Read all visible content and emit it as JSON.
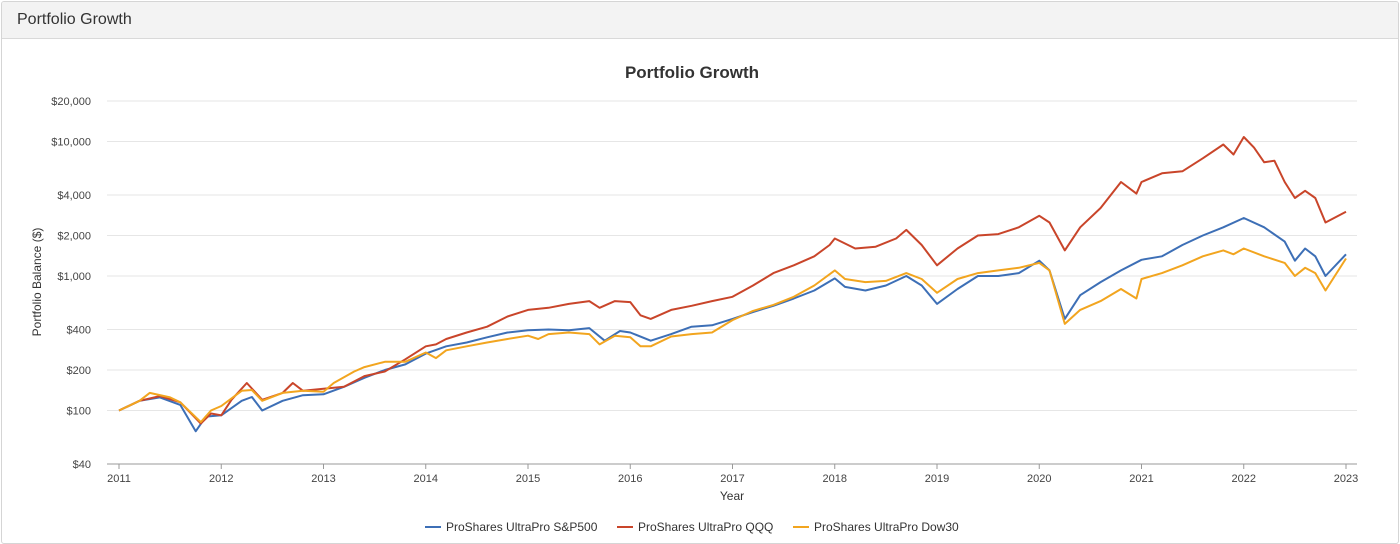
{
  "panel": {
    "title": "Portfolio Growth"
  },
  "colors": {
    "sp500": "#3d6fb6",
    "qqq": "#c9452a",
    "dow30": "#f2a51f",
    "grid": "#e6e6e6",
    "text": "#333333"
  },
  "chart_data": {
    "type": "line",
    "title": "Portfolio Growth",
    "xlabel": "Year",
    "ylabel": "Portfolio Balance ($)",
    "yscale": "log",
    "ylim": [
      40,
      20000
    ],
    "xlim": [
      2011,
      2023
    ],
    "yticks": [
      {
        "value": 20000,
        "label": "$20,000"
      },
      {
        "value": 10000,
        "label": "$10,000"
      },
      {
        "value": 4000,
        "label": "$4,000"
      },
      {
        "value": 2000,
        "label": "$2,000"
      },
      {
        "value": 1000,
        "label": "$1,000"
      },
      {
        "value": 400,
        "label": "$400"
      },
      {
        "value": 200,
        "label": "$200"
      },
      {
        "value": 100,
        "label": "$100"
      },
      {
        "value": 40,
        "label": "$40"
      }
    ],
    "xticks": [
      {
        "value": 2011,
        "label": "2011"
      },
      {
        "value": 2012,
        "label": "2012"
      },
      {
        "value": 2013,
        "label": "2013"
      },
      {
        "value": 2014,
        "label": "2014"
      },
      {
        "value": 2015,
        "label": "2015"
      },
      {
        "value": 2016,
        "label": "2016"
      },
      {
        "value": 2017,
        "label": "2017"
      },
      {
        "value": 2018,
        "label": "2018"
      },
      {
        "value": 2019,
        "label": "2019"
      },
      {
        "value": 2020,
        "label": "2020"
      },
      {
        "value": 2021,
        "label": "2021"
      },
      {
        "value": 2022,
        "label": "2022"
      },
      {
        "value": 2023,
        "label": "2023"
      }
    ],
    "grid": true,
    "legend": "bottom-center",
    "series": [
      {
        "name": "ProShares UltraPro S&P500",
        "color": "#3d6fb6",
        "points": [
          [
            2011.0,
            100
          ],
          [
            2011.2,
            118
          ],
          [
            2011.4,
            125
          ],
          [
            2011.6,
            110
          ],
          [
            2011.75,
            70
          ],
          [
            2011.85,
            90
          ],
          [
            2012.0,
            92
          ],
          [
            2012.2,
            118
          ],
          [
            2012.3,
            126
          ],
          [
            2012.4,
            100
          ],
          [
            2012.6,
            118
          ],
          [
            2012.8,
            130
          ],
          [
            2013.0,
            132
          ],
          [
            2013.2,
            150
          ],
          [
            2013.4,
            175
          ],
          [
            2013.6,
            200
          ],
          [
            2013.8,
            220
          ],
          [
            2014.0,
            265
          ],
          [
            2014.2,
            300
          ],
          [
            2014.4,
            320
          ],
          [
            2014.6,
            350
          ],
          [
            2014.8,
            380
          ],
          [
            2015.0,
            395
          ],
          [
            2015.2,
            400
          ],
          [
            2015.4,
            395
          ],
          [
            2015.6,
            410
          ],
          [
            2015.75,
            330
          ],
          [
            2015.9,
            390
          ],
          [
            2016.0,
            380
          ],
          [
            2016.2,
            330
          ],
          [
            2016.4,
            370
          ],
          [
            2016.6,
            420
          ],
          [
            2016.8,
            430
          ],
          [
            2017.0,
            480
          ],
          [
            2017.2,
            540
          ],
          [
            2017.4,
            600
          ],
          [
            2017.6,
            680
          ],
          [
            2017.8,
            780
          ],
          [
            2018.0,
            960
          ],
          [
            2018.1,
            830
          ],
          [
            2018.3,
            780
          ],
          [
            2018.5,
            850
          ],
          [
            2018.7,
            1000
          ],
          [
            2018.85,
            850
          ],
          [
            2019.0,
            620
          ],
          [
            2019.2,
            800
          ],
          [
            2019.4,
            1000
          ],
          [
            2019.6,
            1000
          ],
          [
            2019.8,
            1050
          ],
          [
            2020.0,
            1300
          ],
          [
            2020.1,
            1100
          ],
          [
            2020.25,
            480
          ],
          [
            2020.4,
            720
          ],
          [
            2020.6,
            900
          ],
          [
            2020.8,
            1100
          ],
          [
            2021.0,
            1320
          ],
          [
            2021.2,
            1400
          ],
          [
            2021.4,
            1700
          ],
          [
            2021.6,
            2000
          ],
          [
            2021.8,
            2300
          ],
          [
            2022.0,
            2700
          ],
          [
            2022.2,
            2300
          ],
          [
            2022.4,
            1800
          ],
          [
            2022.5,
            1300
          ],
          [
            2022.6,
            1600
          ],
          [
            2022.7,
            1400
          ],
          [
            2022.8,
            1000
          ],
          [
            2023.0,
            1450
          ]
        ]
      },
      {
        "name": "ProShares UltraPro QQQ",
        "color": "#c9452a",
        "points": [
          [
            2011.0,
            100
          ],
          [
            2011.2,
            118
          ],
          [
            2011.4,
            128
          ],
          [
            2011.6,
            115
          ],
          [
            2011.8,
            80
          ],
          [
            2011.9,
            95
          ],
          [
            2012.0,
            92
          ],
          [
            2012.1,
            120
          ],
          [
            2012.25,
            160
          ],
          [
            2012.4,
            120
          ],
          [
            2012.6,
            135
          ],
          [
            2012.7,
            160
          ],
          [
            2012.8,
            140
          ],
          [
            2013.0,
            145
          ],
          [
            2013.2,
            150
          ],
          [
            2013.4,
            180
          ],
          [
            2013.6,
            195
          ],
          [
            2013.8,
            240
          ],
          [
            2014.0,
            300
          ],
          [
            2014.1,
            310
          ],
          [
            2014.2,
            340
          ],
          [
            2014.4,
            380
          ],
          [
            2014.6,
            420
          ],
          [
            2014.8,
            500
          ],
          [
            2015.0,
            560
          ],
          [
            2015.2,
            580
          ],
          [
            2015.4,
            620
          ],
          [
            2015.6,
            650
          ],
          [
            2015.7,
            580
          ],
          [
            2015.85,
            650
          ],
          [
            2016.0,
            640
          ],
          [
            2016.1,
            510
          ],
          [
            2016.2,
            480
          ],
          [
            2016.4,
            560
          ],
          [
            2016.6,
            600
          ],
          [
            2016.8,
            650
          ],
          [
            2017.0,
            700
          ],
          [
            2017.2,
            850
          ],
          [
            2017.4,
            1050
          ],
          [
            2017.6,
            1200
          ],
          [
            2017.8,
            1400
          ],
          [
            2017.95,
            1700
          ],
          [
            2018.0,
            1900
          ],
          [
            2018.2,
            1600
          ],
          [
            2018.4,
            1650
          ],
          [
            2018.6,
            1900
          ],
          [
            2018.7,
            2200
          ],
          [
            2018.85,
            1700
          ],
          [
            2019.0,
            1200
          ],
          [
            2019.2,
            1600
          ],
          [
            2019.4,
            2000
          ],
          [
            2019.6,
            2050
          ],
          [
            2019.8,
            2300
          ],
          [
            2020.0,
            2800
          ],
          [
            2020.1,
            2500
          ],
          [
            2020.25,
            1550
          ],
          [
            2020.4,
            2300
          ],
          [
            2020.6,
            3200
          ],
          [
            2020.8,
            5000
          ],
          [
            2020.95,
            4100
          ],
          [
            2021.0,
            5000
          ],
          [
            2021.2,
            5800
          ],
          [
            2021.4,
            6000
          ],
          [
            2021.6,
            7500
          ],
          [
            2021.8,
            9500
          ],
          [
            2021.9,
            8000
          ],
          [
            2022.0,
            10800
          ],
          [
            2022.1,
            9000
          ],
          [
            2022.2,
            7000
          ],
          [
            2022.3,
            7200
          ],
          [
            2022.4,
            5000
          ],
          [
            2022.5,
            3800
          ],
          [
            2022.6,
            4300
          ],
          [
            2022.7,
            3800
          ],
          [
            2022.8,
            2500
          ],
          [
            2023.0,
            3000
          ]
        ]
      },
      {
        "name": "ProShares UltraPro Dow30",
        "color": "#f2a51f",
        "points": [
          [
            2011.0,
            100
          ],
          [
            2011.2,
            118
          ],
          [
            2011.3,
            135
          ],
          [
            2011.5,
            125
          ],
          [
            2011.6,
            115
          ],
          [
            2011.8,
            82
          ],
          [
            2011.9,
            100
          ],
          [
            2012.0,
            108
          ],
          [
            2012.2,
            140
          ],
          [
            2012.3,
            142
          ],
          [
            2012.4,
            118
          ],
          [
            2012.6,
            135
          ],
          [
            2012.8,
            140
          ],
          [
            2013.0,
            138
          ],
          [
            2013.1,
            160
          ],
          [
            2013.3,
            195
          ],
          [
            2013.4,
            210
          ],
          [
            2013.6,
            230
          ],
          [
            2013.8,
            230
          ],
          [
            2014.0,
            270
          ],
          [
            2014.1,
            245
          ],
          [
            2014.2,
            280
          ],
          [
            2014.4,
            300
          ],
          [
            2014.6,
            320
          ],
          [
            2014.8,
            340
          ],
          [
            2015.0,
            360
          ],
          [
            2015.1,
            340
          ],
          [
            2015.2,
            370
          ],
          [
            2015.4,
            380
          ],
          [
            2015.6,
            370
          ],
          [
            2015.7,
            310
          ],
          [
            2015.85,
            360
          ],
          [
            2016.0,
            350
          ],
          [
            2016.1,
            300
          ],
          [
            2016.2,
            300
          ],
          [
            2016.4,
            355
          ],
          [
            2016.6,
            370
          ],
          [
            2016.8,
            380
          ],
          [
            2017.0,
            470
          ],
          [
            2017.2,
            550
          ],
          [
            2017.4,
            610
          ],
          [
            2017.6,
            700
          ],
          [
            2017.8,
            850
          ],
          [
            2018.0,
            1100
          ],
          [
            2018.1,
            950
          ],
          [
            2018.3,
            900
          ],
          [
            2018.5,
            920
          ],
          [
            2018.7,
            1050
          ],
          [
            2018.85,
            950
          ],
          [
            2019.0,
            750
          ],
          [
            2019.2,
            950
          ],
          [
            2019.4,
            1050
          ],
          [
            2019.6,
            1100
          ],
          [
            2019.8,
            1150
          ],
          [
            2020.0,
            1250
          ],
          [
            2020.1,
            1100
          ],
          [
            2020.25,
            440
          ],
          [
            2020.4,
            560
          ],
          [
            2020.6,
            650
          ],
          [
            2020.8,
            800
          ],
          [
            2020.95,
            680
          ],
          [
            2021.0,
            950
          ],
          [
            2021.2,
            1050
          ],
          [
            2021.4,
            1200
          ],
          [
            2021.6,
            1400
          ],
          [
            2021.8,
            1550
          ],
          [
            2021.9,
            1450
          ],
          [
            2022.0,
            1600
          ],
          [
            2022.2,
            1400
          ],
          [
            2022.4,
            1250
          ],
          [
            2022.5,
            1000
          ],
          [
            2022.6,
            1150
          ],
          [
            2022.7,
            1050
          ],
          [
            2022.8,
            780
          ],
          [
            2023.0,
            1350
          ]
        ]
      }
    ]
  }
}
